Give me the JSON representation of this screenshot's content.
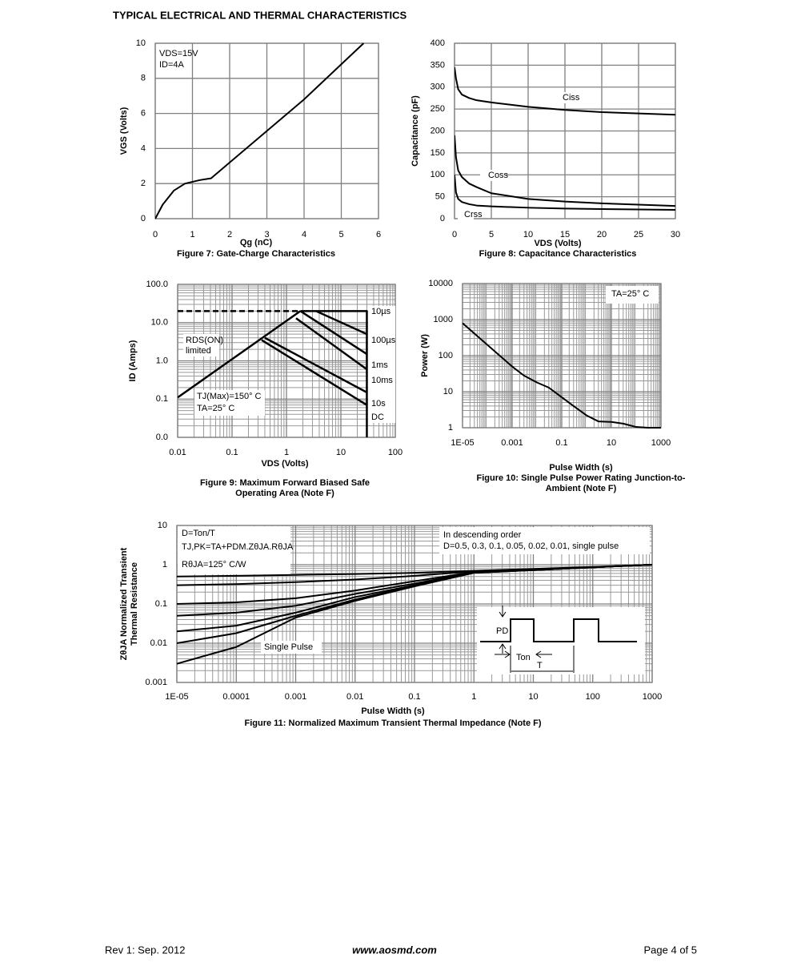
{
  "header": {
    "title": "TYPICAL ELECTRICAL AND THERMAL CHARACTERISTICS"
  },
  "footer": {
    "left": "Rev 1: Sep. 2012",
    "center": "www.aosmd.com",
    "right": "Page 4 of 5"
  },
  "chart_data": [
    {
      "type": "line",
      "caption": [
        "Figure 7: Gate-Charge Characteristics"
      ],
      "xlabel": "Qg (nC)",
      "ylabel": [
        "VGS (Volts)"
      ],
      "xlim": [
        0,
        6
      ],
      "ylim": [
        0,
        10
      ],
      "xticks": [
        0,
        1,
        2,
        3,
        4,
        5,
        6
      ],
      "yticks": [
        0,
        2,
        4,
        6,
        8,
        10
      ],
      "grid": true,
      "annotations": [
        "VDS=15V",
        "ID=4A"
      ],
      "series": [
        {
          "color": "#000000",
          "x": [
            0,
            0.2,
            0.5,
            0.8,
            1.2,
            1.5,
            2,
            3,
            4,
            5,
            5.6
          ],
          "values": [
            0,
            0.8,
            1.6,
            2.0,
            2.2,
            2.3,
            3.2,
            5.0,
            6.8,
            8.8,
            10
          ]
        }
      ]
    },
    {
      "type": "line",
      "caption": [
        "Figure 8: Capacitance Characteristics"
      ],
      "xlabel": "VDS (Volts)",
      "ylabel": [
        "Capacitance (pF)"
      ],
      "xlim": [
        0,
        30
      ],
      "ylim": [
        0,
        400
      ],
      "xticks": [
        0,
        5,
        10,
        15,
        20,
        25,
        30
      ],
      "yticks": [
        0,
        50,
        100,
        150,
        200,
        250,
        300,
        350,
        400
      ],
      "grid": true,
      "annotations": [],
      "series": [
        {
          "name": "Ciss",
          "color": "#000000",
          "x": [
            0,
            0.2,
            0.5,
            1,
            2,
            3,
            5,
            10,
            15,
            20,
            25,
            30
          ],
          "values": [
            345,
            320,
            295,
            283,
            275,
            270,
            265,
            255,
            248,
            243,
            240,
            237
          ]
        },
        {
          "name": "Coss",
          "color": "#000000",
          "x": [
            0,
            0.2,
            0.5,
            1,
            2,
            3,
            5,
            10,
            15,
            20,
            25,
            30
          ],
          "values": [
            190,
            140,
            110,
            95,
            80,
            72,
            58,
            45,
            39,
            35,
            32,
            29
          ]
        },
        {
          "name": "Crss",
          "color": "#000000",
          "x": [
            0,
            0.2,
            0.5,
            1,
            2,
            3,
            5,
            10,
            15,
            20,
            25,
            30
          ],
          "values": [
            100,
            60,
            45,
            38,
            33,
            30,
            28,
            25,
            23,
            22,
            21,
            20
          ]
        }
      ]
    },
    {
      "type": "line",
      "caption": [
        "Figure 9: Maximum Forward Biased Safe",
        "Operating Area (Note F)"
      ],
      "xlabel": "VDS (Volts)",
      "ylabel": [
        "ID (Amps)"
      ],
      "log_x": true,
      "log_y": true,
      "xlim": [
        0.01,
        100
      ],
      "ylim": [
        0.01,
        100
      ],
      "xticks": [
        0.01,
        0.1,
        1,
        10,
        100
      ],
      "yticks": [
        {
          "value": 0.01,
          "label": "0.0"
        },
        0.1,
        {
          "value": 1,
          "label": "1.0"
        },
        {
          "value": 10,
          "label": "10.0"
        },
        {
          "value": 100,
          "label": "100.0"
        }
      ],
      "grid": true,
      "minor_grid": true,
      "annotations": [
        "RDS(ON)",
        "limited",
        "TJ(Max)=150° C",
        "TA=25° C"
      ],
      "series": [
        {
          "color": "#000000",
          "style": "dashed",
          "x": [
            0.01,
            1.8
          ],
          "values": [
            20,
            20
          ]
        },
        {
          "color": "#000000",
          "x": [
            0.01,
            1.8
          ],
          "values": [
            0.11,
            20
          ]
        },
        {
          "name": "10µs",
          "color": "#000000",
          "x": [
            1.8,
            30,
            30
          ],
          "values": [
            20,
            20,
            0.01
          ]
        },
        {
          "name": "100µs",
          "color": "#000000",
          "x": [
            3.5,
            30
          ],
          "values": [
            20,
            5
          ]
        },
        {
          "name": "1ms",
          "color": "#000000",
          "x": [
            1.8,
            30
          ],
          "values": [
            20,
            1.5
          ]
        },
        {
          "name": "10ms",
          "color": "#000000",
          "x": [
            1.5,
            30
          ],
          "values": [
            13,
            0.6
          ]
        },
        {
          "name": "10s",
          "color": "#000000",
          "x": [
            0.4,
            30
          ],
          "values": [
            4,
            0.15
          ]
        },
        {
          "name": "DC",
          "color": "#000000",
          "x": [
            0.35,
            30
          ],
          "values": [
            3.5,
            0.07
          ]
        }
      ]
    },
    {
      "type": "line",
      "caption": [
        "Figure 10: Single Pulse Power Rating Junction-to-",
        "Ambient (Note F)"
      ],
      "xlabel": "Pulse Width (s)",
      "ylabel": [
        "Power (W)"
      ],
      "log_x": true,
      "log_y": true,
      "xlim": [
        1e-05,
        1000
      ],
      "ylim": [
        1,
        10000
      ],
      "xticks": [
        {
          "value": 1e-05,
          "label": "1E-05"
        },
        0.001,
        0.1,
        10,
        1000
      ],
      "yticks": [
        1,
        10,
        100,
        1000,
        10000
      ],
      "grid": true,
      "minor_grid": true,
      "annotations": [
        "TA=25° C"
      ],
      "series": [
        {
          "color": "#000000",
          "x": [
            1e-05,
            0.0001,
            0.001,
            0.003,
            0.01,
            0.03,
            0.1,
            0.3,
            1,
            3,
            10,
            30,
            100,
            300,
            1000
          ],
          "values": [
            800,
            200,
            50,
            28,
            18,
            13,
            7,
            4,
            2.2,
            1.5,
            1.45,
            1.3,
            1.05,
            1,
            1
          ]
        }
      ]
    },
    {
      "type": "line",
      "caption": [
        "Figure 11: Normalized Maximum Transient Thermal Impedance (Note F)"
      ],
      "xlabel": "Pulse Width (s)",
      "ylabel": [
        "ZθJA Normalized Transient",
        "Thermal Resistance"
      ],
      "log_x": true,
      "log_y": true,
      "xlim": [
        1e-05,
        1000
      ],
      "ylim": [
        0.001,
        10
      ],
      "xticks": [
        {
          "value": 1e-05,
          "label": "1E-05"
        },
        0.0001,
        0.001,
        0.01,
        0.1,
        1,
        10,
        100,
        1000
      ],
      "yticks": [
        0.001,
        0.01,
        0.1,
        1,
        10
      ],
      "grid": true,
      "minor_grid": true,
      "annotations": [
        "D=Ton/T",
        "TJ,PK=TA+PDM.ZθJA.RθJA",
        "RθJA=125° C/W",
        "In descending order",
        "D=0.5, 0.3, 0.1, 0.05, 0.02, 0.01, single pulse",
        "Single Pulse",
        "PD",
        "Ton",
        "T"
      ],
      "series": [
        {
          "color": "#000000",
          "x": [
            1e-05,
            0.0001,
            0.001,
            0.01,
            0.1,
            1,
            10,
            100,
            1000
          ],
          "values": [
            0.5,
            0.52,
            0.55,
            0.58,
            0.62,
            0.7,
            0.78,
            0.88,
            1
          ]
        },
        {
          "color": "#000000",
          "x": [
            1e-05,
            0.0001,
            0.001,
            0.01,
            0.1,
            1,
            10,
            100,
            1000
          ],
          "values": [
            0.3,
            0.32,
            0.36,
            0.42,
            0.52,
            0.68,
            0.76,
            0.87,
            1
          ]
        },
        {
          "color": "#000000",
          "x": [
            1e-05,
            0.0001,
            0.001,
            0.01,
            0.1,
            1,
            10,
            100,
            1000
          ],
          "values": [
            0.1,
            0.11,
            0.14,
            0.22,
            0.38,
            0.65,
            0.74,
            0.86,
            1
          ]
        },
        {
          "color": "#000000",
          "x": [
            1e-05,
            0.0001,
            0.001,
            0.01,
            0.1,
            1,
            10,
            100,
            1000
          ],
          "values": [
            0.05,
            0.06,
            0.09,
            0.18,
            0.33,
            0.64,
            0.74,
            0.86,
            1
          ]
        },
        {
          "color": "#000000",
          "x": [
            1e-05,
            0.0001,
            0.001,
            0.01,
            0.1,
            1,
            10,
            100,
            1000
          ],
          "values": [
            0.02,
            0.028,
            0.06,
            0.15,
            0.3,
            0.63,
            0.73,
            0.86,
            1
          ]
        },
        {
          "color": "#000000",
          "x": [
            1e-05,
            0.0001,
            0.001,
            0.01,
            0.1,
            1,
            10,
            100,
            1000
          ],
          "values": [
            0.01,
            0.018,
            0.05,
            0.13,
            0.29,
            0.62,
            0.73,
            0.86,
            1
          ]
        },
        {
          "color": "#000000",
          "x": [
            1e-05,
            0.0001,
            0.001,
            0.01,
            0.1,
            1,
            10,
            100,
            1000
          ],
          "values": [
            0.003,
            0.008,
            0.045,
            0.12,
            0.28,
            0.62,
            0.73,
            0.86,
            1
          ]
        }
      ]
    }
  ]
}
